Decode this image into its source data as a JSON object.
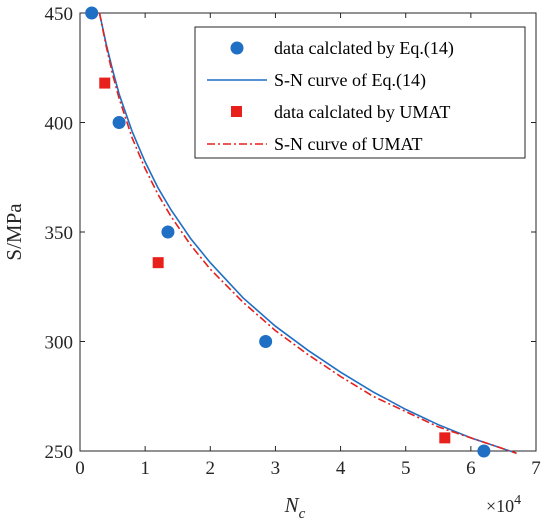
{
  "chart_data": {
    "type": "scatter",
    "xlabel": "N",
    "xlabel_sub": "c",
    "ylabel": "S/MPa",
    "x_multiplier": "×10",
    "x_multiplier_exp": "4",
    "xlim": [
      0,
      7
    ],
    "ylim": [
      250,
      450
    ],
    "xticks": [
      "0",
      "1",
      "2",
      "3",
      "4",
      "5",
      "6",
      "7"
    ],
    "yticks": [
      "250",
      "300",
      "350",
      "400",
      "450"
    ],
    "grid": false,
    "legend_position": "top-right",
    "colors": {
      "blue": "#1f6fc4",
      "red": "#e8201c",
      "axis": "#262626"
    },
    "series": [
      {
        "name": "data calclated by Eq.(14)",
        "kind": "marker-circle",
        "color": "#1f6fc4",
        "points": [
          [
            0.18,
            450
          ],
          [
            0.6,
            400
          ],
          [
            1.35,
            350
          ],
          [
            2.85,
            300
          ],
          [
            6.2,
            250
          ]
        ]
      },
      {
        "name": "S-N curve of Eq.(14)",
        "kind": "line-solid",
        "color": "#1f6fc4",
        "points": [
          [
            0.3,
            450
          ],
          [
            0.4,
            436
          ],
          [
            0.5,
            424
          ],
          [
            0.6,
            413
          ],
          [
            0.8,
            396
          ],
          [
            1.0,
            382
          ],
          [
            1.2,
            370
          ],
          [
            1.4,
            360
          ],
          [
            1.7,
            347
          ],
          [
            2.0,
            336
          ],
          [
            2.5,
            320
          ],
          [
            3.0,
            307
          ],
          [
            3.5,
            296
          ],
          [
            4.0,
            286
          ],
          [
            4.5,
            277
          ],
          [
            5.0,
            269
          ],
          [
            5.5,
            262
          ],
          [
            6.0,
            256
          ],
          [
            6.4,
            252
          ],
          [
            6.7,
            249
          ]
        ]
      },
      {
        "name": "data calclated by UMAT",
        "kind": "marker-square",
        "color": "#e8201c",
        "points": [
          [
            0.38,
            418
          ],
          [
            1.2,
            336
          ],
          [
            5.6,
            256
          ]
        ]
      },
      {
        "name": "S-N curve of UMAT",
        "kind": "line-dashdot",
        "color": "#e8201c",
        "points": [
          [
            0.3,
            450
          ],
          [
            0.4,
            435
          ],
          [
            0.5,
            422
          ],
          [
            0.6,
            411
          ],
          [
            0.8,
            393
          ],
          [
            1.0,
            379
          ],
          [
            1.2,
            367
          ],
          [
            1.4,
            357
          ],
          [
            1.7,
            344
          ],
          [
            2.0,
            333
          ],
          [
            2.5,
            318
          ],
          [
            3.0,
            305
          ],
          [
            3.5,
            294
          ],
          [
            4.0,
            284
          ],
          [
            4.5,
            275
          ],
          [
            5.0,
            268
          ],
          [
            5.5,
            261
          ],
          [
            6.0,
            256
          ],
          [
            6.4,
            252
          ],
          [
            6.7,
            249
          ]
        ]
      }
    ]
  }
}
